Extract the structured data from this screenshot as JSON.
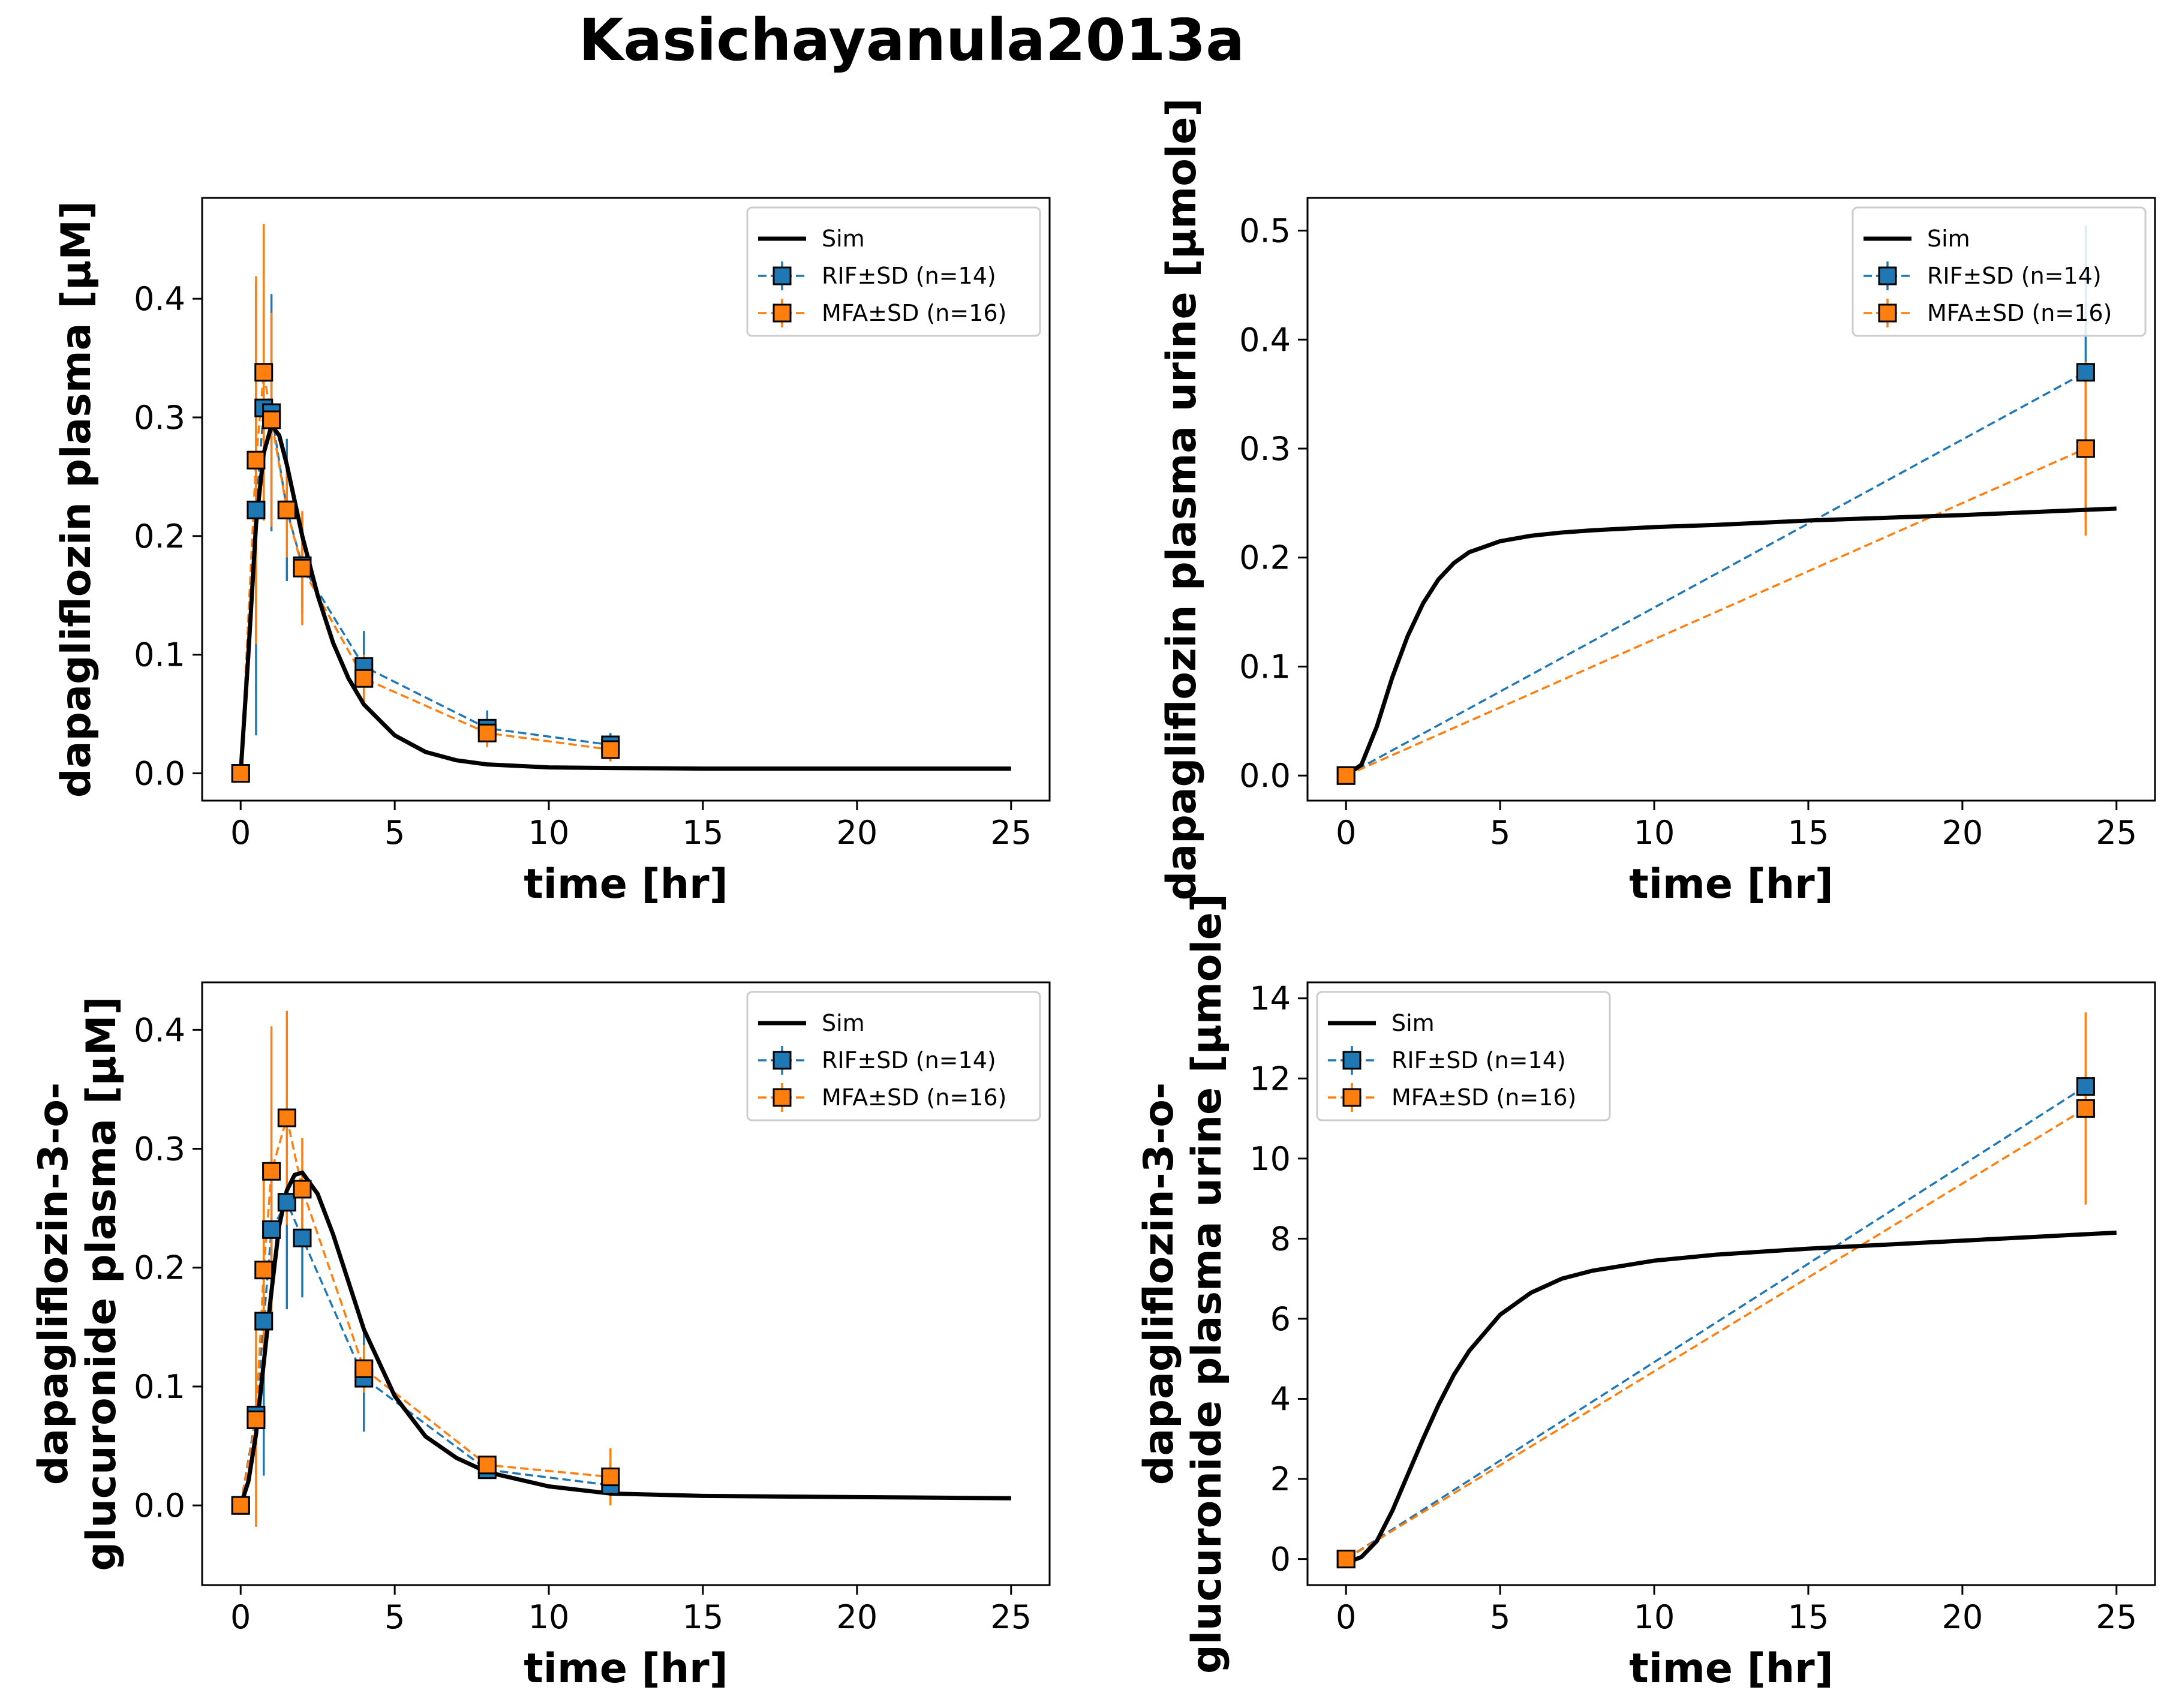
{
  "figure_title": "Kasichayanula2013a",
  "colors": {
    "sim": "#000000",
    "RIF": "#1f77b4",
    "MFA": "#ff7f0e"
  },
  "chart_data": [
    {
      "type": "line",
      "xlabel": "time [hr]",
      "ylabel_lines": [
        "dapagliflozin plasma [µM]"
      ],
      "xlim": [
        -1.25,
        26.25
      ],
      "ylim": [
        -0.023,
        0.485
      ],
      "xticks": [
        0,
        5,
        10,
        15,
        20,
        25
      ],
      "yticks": [
        0.0,
        0.1,
        0.2,
        0.3,
        0.4
      ],
      "ytick_labels": [
        "0.0",
        "0.1",
        "0.2",
        "0.3",
        "0.4"
      ],
      "legend_position": "top-right",
      "sim": {
        "name": "Sim",
        "x": [
          0,
          0.25,
          0.5,
          0.75,
          1.0,
          1.25,
          1.5,
          2.0,
          2.5,
          3.0,
          3.5,
          4.0,
          5.0,
          6.0,
          7.0,
          8.0,
          10.0,
          12.0,
          15.0,
          20.0,
          25.0
        ],
        "y": [
          0,
          0.1,
          0.21,
          0.27,
          0.293,
          0.285,
          0.26,
          0.2,
          0.15,
          0.11,
          0.08,
          0.058,
          0.032,
          0.018,
          0.011,
          0.0075,
          0.005,
          0.0045,
          0.004,
          0.004,
          0.004
        ]
      },
      "series": [
        {
          "name": "RIF±SD (n=14)",
          "x": [
            0,
            0.5,
            0.75,
            1.0,
            1.5,
            2.0,
            4.0,
            8.0,
            12.0
          ],
          "y": [
            0.0,
            0.222,
            0.308,
            0.304,
            0.222,
            0.175,
            0.09,
            0.038,
            0.024
          ],
          "sd": [
            0,
            0.19,
            0.08,
            0.1,
            0.06,
            0.04,
            0.03,
            0.015,
            0.01
          ]
        },
        {
          "name": "MFA±SD (n=16)",
          "x": [
            0,
            0.5,
            0.75,
            1.0,
            1.5,
            2.0,
            4.0,
            8.0,
            12.0
          ],
          "y": [
            0.0,
            0.264,
            0.338,
            0.298,
            0.222,
            0.173,
            0.08,
            0.034,
            0.02
          ],
          "sd": [
            0,
            0.155,
            0.125,
            0.09,
            0.04,
            0.048,
            0.02,
            0.012,
            0.01
          ]
        }
      ]
    },
    {
      "type": "line",
      "xlabel": "time [hr]",
      "ylabel_lines": [
        "dapagliflozin plasma urine [µmole]"
      ],
      "xlim": [
        -1.25,
        26.25
      ],
      "ylim": [
        -0.023,
        0.53
      ],
      "xticks": [
        0,
        5,
        10,
        15,
        20,
        25
      ],
      "yticks": [
        0.0,
        0.1,
        0.2,
        0.3,
        0.4,
        0.5
      ],
      "ytick_labels": [
        "0.0",
        "0.1",
        "0.2",
        "0.3",
        "0.4",
        "0.5"
      ],
      "legend_position": "top-right",
      "sim": {
        "name": "Sim",
        "x": [
          0,
          0.5,
          1.0,
          1.5,
          2.0,
          2.5,
          3.0,
          3.5,
          4.0,
          5.0,
          6.0,
          7.0,
          8.0,
          10.0,
          12.0,
          15.0,
          20.0,
          25.0
        ],
        "y": [
          0,
          0.01,
          0.045,
          0.09,
          0.128,
          0.158,
          0.18,
          0.195,
          0.205,
          0.215,
          0.22,
          0.223,
          0.225,
          0.228,
          0.23,
          0.234,
          0.239,
          0.245
        ]
      },
      "series": [
        {
          "name": "RIF±SD (n=14)",
          "x": [
            0,
            24
          ],
          "y": [
            0.0,
            0.37
          ],
          "sd": [
            0,
            0.135
          ]
        },
        {
          "name": "MFA±SD (n=16)",
          "x": [
            0,
            24
          ],
          "y": [
            0.0,
            0.3
          ],
          "sd": [
            0,
            0.08
          ]
        }
      ]
    },
    {
      "type": "line",
      "xlabel": "time [hr]",
      "ylabel_lines": [
        "dapagliflozin-3-o-",
        "glucuronide plasma [µM]"
      ],
      "xlim": [
        -1.25,
        26.25
      ],
      "ylim": [
        -0.067,
        0.44
      ],
      "xticks": [
        0,
        5,
        10,
        15,
        20,
        25
      ],
      "yticks": [
        0.0,
        0.1,
        0.2,
        0.3,
        0.4
      ],
      "ytick_labels": [
        "0.0",
        "0.1",
        "0.2",
        "0.3",
        "0.4"
      ],
      "legend_position": "top-right",
      "sim": {
        "name": "Sim",
        "x": [
          0,
          0.25,
          0.5,
          0.75,
          1.0,
          1.25,
          1.5,
          1.75,
          2.0,
          2.5,
          3.0,
          3.5,
          4.0,
          5.0,
          6.0,
          7.0,
          8.0,
          10.0,
          12.0,
          15.0,
          20.0,
          25.0
        ],
        "y": [
          0,
          0.02,
          0.06,
          0.12,
          0.18,
          0.235,
          0.265,
          0.278,
          0.28,
          0.262,
          0.228,
          0.188,
          0.148,
          0.092,
          0.058,
          0.04,
          0.028,
          0.016,
          0.01,
          0.008,
          0.007,
          0.006
        ]
      },
      "series": [
        {
          "name": "RIF±SD (n=14)",
          "x": [
            0,
            0.5,
            0.75,
            1.0,
            1.5,
            2.0,
            4.0,
            8.0,
            12.0
          ],
          "y": [
            0.0,
            0.076,
            0.155,
            0.232,
            0.255,
            0.225,
            0.107,
            0.03,
            0.017
          ],
          "sd": [
            0,
            0.05,
            0.13,
            0.06,
            0.09,
            0.05,
            0.045,
            0.005,
            0.005
          ]
        },
        {
          "name": "MFA±SD (n=16)",
          "x": [
            0,
            0.5,
            0.75,
            1.0,
            1.5,
            2.0,
            4.0,
            8.0,
            12.0
          ],
          "y": [
            0.0,
            0.072,
            0.198,
            0.281,
            0.326,
            0.266,
            0.115,
            0.034,
            0.024
          ],
          "sd": [
            0,
            0.09,
            0.09,
            0.122,
            0.09,
            0.043,
            0.02,
            0.005,
            0.024
          ]
        }
      ]
    },
    {
      "type": "line",
      "xlabel": "time [hr]",
      "ylabel_lines": [
        "dapagliflozin-3-o-",
        "glucuronide plasma urine [µmole]"
      ],
      "xlim": [
        -1.25,
        26.25
      ],
      "ylim": [
        -0.65,
        14.4
      ],
      "xticks": [
        0,
        5,
        10,
        15,
        20,
        25
      ],
      "yticks": [
        0,
        2,
        4,
        6,
        8,
        10,
        12,
        14
      ],
      "ytick_labels": [
        "0",
        "2",
        "4",
        "6",
        "8",
        "10",
        "12",
        "14"
      ],
      "legend_position": "top-left",
      "sim": {
        "name": "Sim",
        "x": [
          0,
          0.5,
          1.0,
          1.5,
          2.0,
          2.5,
          3.0,
          3.5,
          4.0,
          5.0,
          6.0,
          7.0,
          8.0,
          10.0,
          12.0,
          15.0,
          20.0,
          25.0
        ],
        "y": [
          -0.1,
          0.05,
          0.45,
          1.2,
          2.1,
          3.0,
          3.85,
          4.6,
          5.2,
          6.1,
          6.65,
          7.0,
          7.2,
          7.45,
          7.6,
          7.75,
          7.95,
          8.15
        ]
      },
      "series": [
        {
          "name": "RIF±SD (n=14)",
          "x": [
            0,
            24
          ],
          "y": [
            0.0,
            11.8
          ],
          "sd": [
            0,
            0.3
          ]
        },
        {
          "name": "MFA±SD (n=16)",
          "x": [
            0,
            24
          ],
          "y": [
            0.0,
            11.25
          ],
          "sd": [
            0,
            2.4
          ]
        }
      ]
    }
  ]
}
